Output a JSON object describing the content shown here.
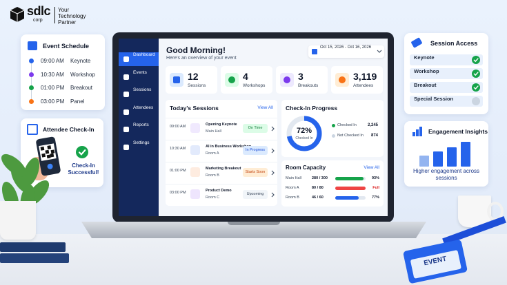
{
  "brand": {
    "name": "sdlc",
    "sub": "corp",
    "tagline": "Your Technology Partner"
  },
  "schedule": {
    "title": "Event Schedule",
    "items": [
      {
        "time": "09:00 AM",
        "label": "Keynote"
      },
      {
        "time": "10:30 AM",
        "label": "Workshop"
      },
      {
        "time": "01:00 PM",
        "label": "Breakout"
      },
      {
        "time": "03:00 PM",
        "label": "Panel"
      }
    ]
  },
  "checkin_card": {
    "title": "Attendee Check-In",
    "message": "Check-In Successful!"
  },
  "access": {
    "title": "Session Access",
    "items": [
      "Keynote",
      "Workshop",
      "Breakout",
      "Special Session"
    ]
  },
  "insights": {
    "title": "Engagement Insights",
    "text": "Higher engagement across sessions"
  },
  "badge": "EVENT",
  "dashboard": {
    "nav": [
      "Dashboard",
      "Events",
      "Sessions",
      "Attendees",
      "Reports",
      "Settings"
    ],
    "greeting": "Good Morning!",
    "subtitle": "Here's an overview of your event",
    "dates": "Oct 15, 2026 - Oct 16, 2026",
    "stats": [
      {
        "value": 12,
        "label": "Sessions"
      },
      {
        "value": 4,
        "label": "Workshops"
      },
      {
        "value": 3,
        "label": "Breakouts"
      },
      {
        "value": "3,119",
        "label": "Attendees"
      }
    ],
    "sessions": {
      "title": "Today's Sessions",
      "link": "View All",
      "rows": [
        {
          "time": "09:00 AM",
          "title": "Opening Keynote",
          "room": "Main Hall",
          "status": "On Time"
        },
        {
          "time": "10:30 AM",
          "title": "AI in Business Workshop",
          "room": "Room A",
          "status": "In Progress"
        },
        {
          "time": "01:00 PM",
          "title": "Marketing Breakout",
          "room": "Room B",
          "status": "Starts Soon"
        },
        {
          "time": "03:00 PM",
          "title": "Product Demo",
          "room": "Room C",
          "status": "Upcoming"
        }
      ]
    },
    "progress": {
      "title": "Check-In Progress",
      "percent": 72,
      "percent_label": "72%",
      "center_label": "Checked In",
      "legend": [
        {
          "label": "Checked In",
          "value": "2,245"
        },
        {
          "label": "Not Checked In",
          "value": 874
        }
      ]
    },
    "capacity": {
      "title": "Room Capacity",
      "link": "View All",
      "rows": [
        {
          "room": "Main Hall",
          "count": "280 / 300",
          "percent": 93,
          "percent_label": "93%"
        },
        {
          "room": "Room A",
          "count": "80 / 80",
          "percent": 100,
          "percent_label": "Full"
        },
        {
          "room": "Room B",
          "count": "46 / 60",
          "percent": 77,
          "percent_label": "77%"
        }
      ]
    }
  }
}
